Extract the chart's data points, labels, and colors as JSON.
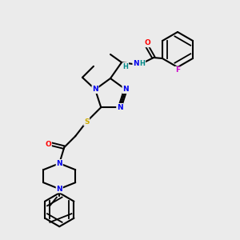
{
  "bg_color": "#ebebeb",
  "bond_color": "#000000",
  "atom_colors": {
    "N": "#0000ee",
    "O": "#ff0000",
    "S": "#ccaa00",
    "F": "#cc00cc",
    "H": "#008888",
    "C": "#000000"
  }
}
